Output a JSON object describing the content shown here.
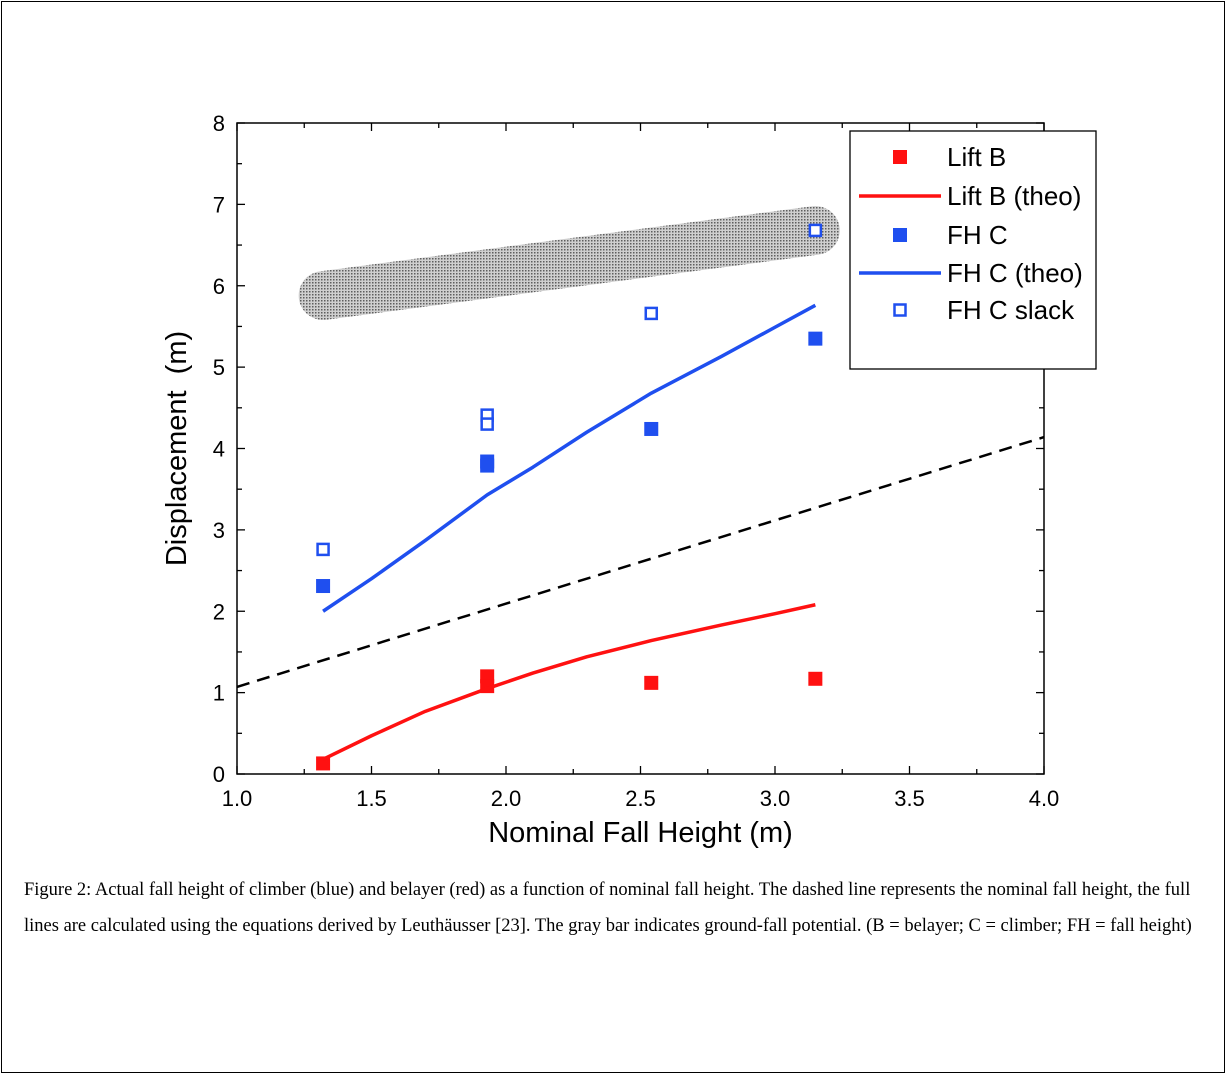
{
  "caption": "Figure 2: Actual fall height of climber (blue) and belayer (red) as a function of nominal fall height. The dashed line represents the nominal fall height, the full lines are calculated using the equations derived by Leuthäusser [23]. The gray bar indicates ground-fall potential. (B = belayer; C = climber; FH = fall height)",
  "colors": {
    "red": "#ff1111",
    "blue": "#1f4fef",
    "band": "#9a9a9a",
    "dashed": "#000000"
  },
  "chart_data": {
    "type": "scatter",
    "xlabel": "Nominal Fall Height (m)",
    "ylabel": "Displacement  (m)",
    "xlim": [
      1.0,
      4.0
    ],
    "ylim": [
      0,
      8
    ],
    "xticks": [
      "1.0",
      "1.5",
      "2.0",
      "2.5",
      "3.0",
      "3.5",
      "4.0"
    ],
    "yticks": [
      "0",
      "1",
      "2",
      "3",
      "4",
      "5",
      "6",
      "7",
      "8"
    ],
    "legend_position": "top-right",
    "series": [
      {
        "name": "Lift B",
        "style": "filled-square",
        "color": "red",
        "points": [
          [
            1.32,
            0.13
          ],
          [
            1.93,
            1.2
          ],
          [
            1.93,
            1.08
          ],
          [
            2.54,
            1.12
          ],
          [
            3.15,
            1.17
          ]
        ]
      },
      {
        "name": "Lift B (theo)",
        "style": "line",
        "color": "red",
        "points": [
          [
            1.32,
            0.18
          ],
          [
            1.5,
            0.47
          ],
          [
            1.7,
            0.77
          ],
          [
            1.93,
            1.05
          ],
          [
            2.1,
            1.24
          ],
          [
            2.3,
            1.44
          ],
          [
            2.54,
            1.64
          ],
          [
            2.8,
            1.83
          ],
          [
            3.0,
            1.97
          ],
          [
            3.15,
            2.08
          ]
        ]
      },
      {
        "name": "FH C",
        "style": "filled-square",
        "color": "blue",
        "points": [
          [
            1.32,
            2.31
          ],
          [
            1.93,
            3.84
          ],
          [
            1.93,
            3.79
          ],
          [
            2.54,
            4.24
          ],
          [
            3.15,
            5.35
          ]
        ]
      },
      {
        "name": "FH C (theo)",
        "style": "line",
        "color": "blue",
        "points": [
          [
            1.32,
            2.0
          ],
          [
            1.5,
            2.4
          ],
          [
            1.7,
            2.87
          ],
          [
            1.93,
            3.43
          ],
          [
            2.1,
            3.77
          ],
          [
            2.3,
            4.2
          ],
          [
            2.54,
            4.68
          ],
          [
            2.8,
            5.13
          ],
          [
            3.0,
            5.49
          ],
          [
            3.15,
            5.76
          ]
        ]
      },
      {
        "name": "FH C slack",
        "style": "open-square",
        "color": "blue",
        "points": [
          [
            1.32,
            2.76
          ],
          [
            1.93,
            4.41
          ],
          [
            1.93,
            4.3
          ],
          [
            2.54,
            5.66
          ],
          [
            3.15,
            6.68
          ]
        ]
      }
    ],
    "reference_line": {
      "style": "dashed",
      "points": [
        [
          1.0,
          1.07
        ],
        [
          4.0,
          4.14
        ]
      ]
    },
    "gray_band": {
      "x": [
        1.32,
        3.15
      ],
      "y_center": [
        5.88,
        6.68
      ],
      "half_height": 0.3
    }
  }
}
